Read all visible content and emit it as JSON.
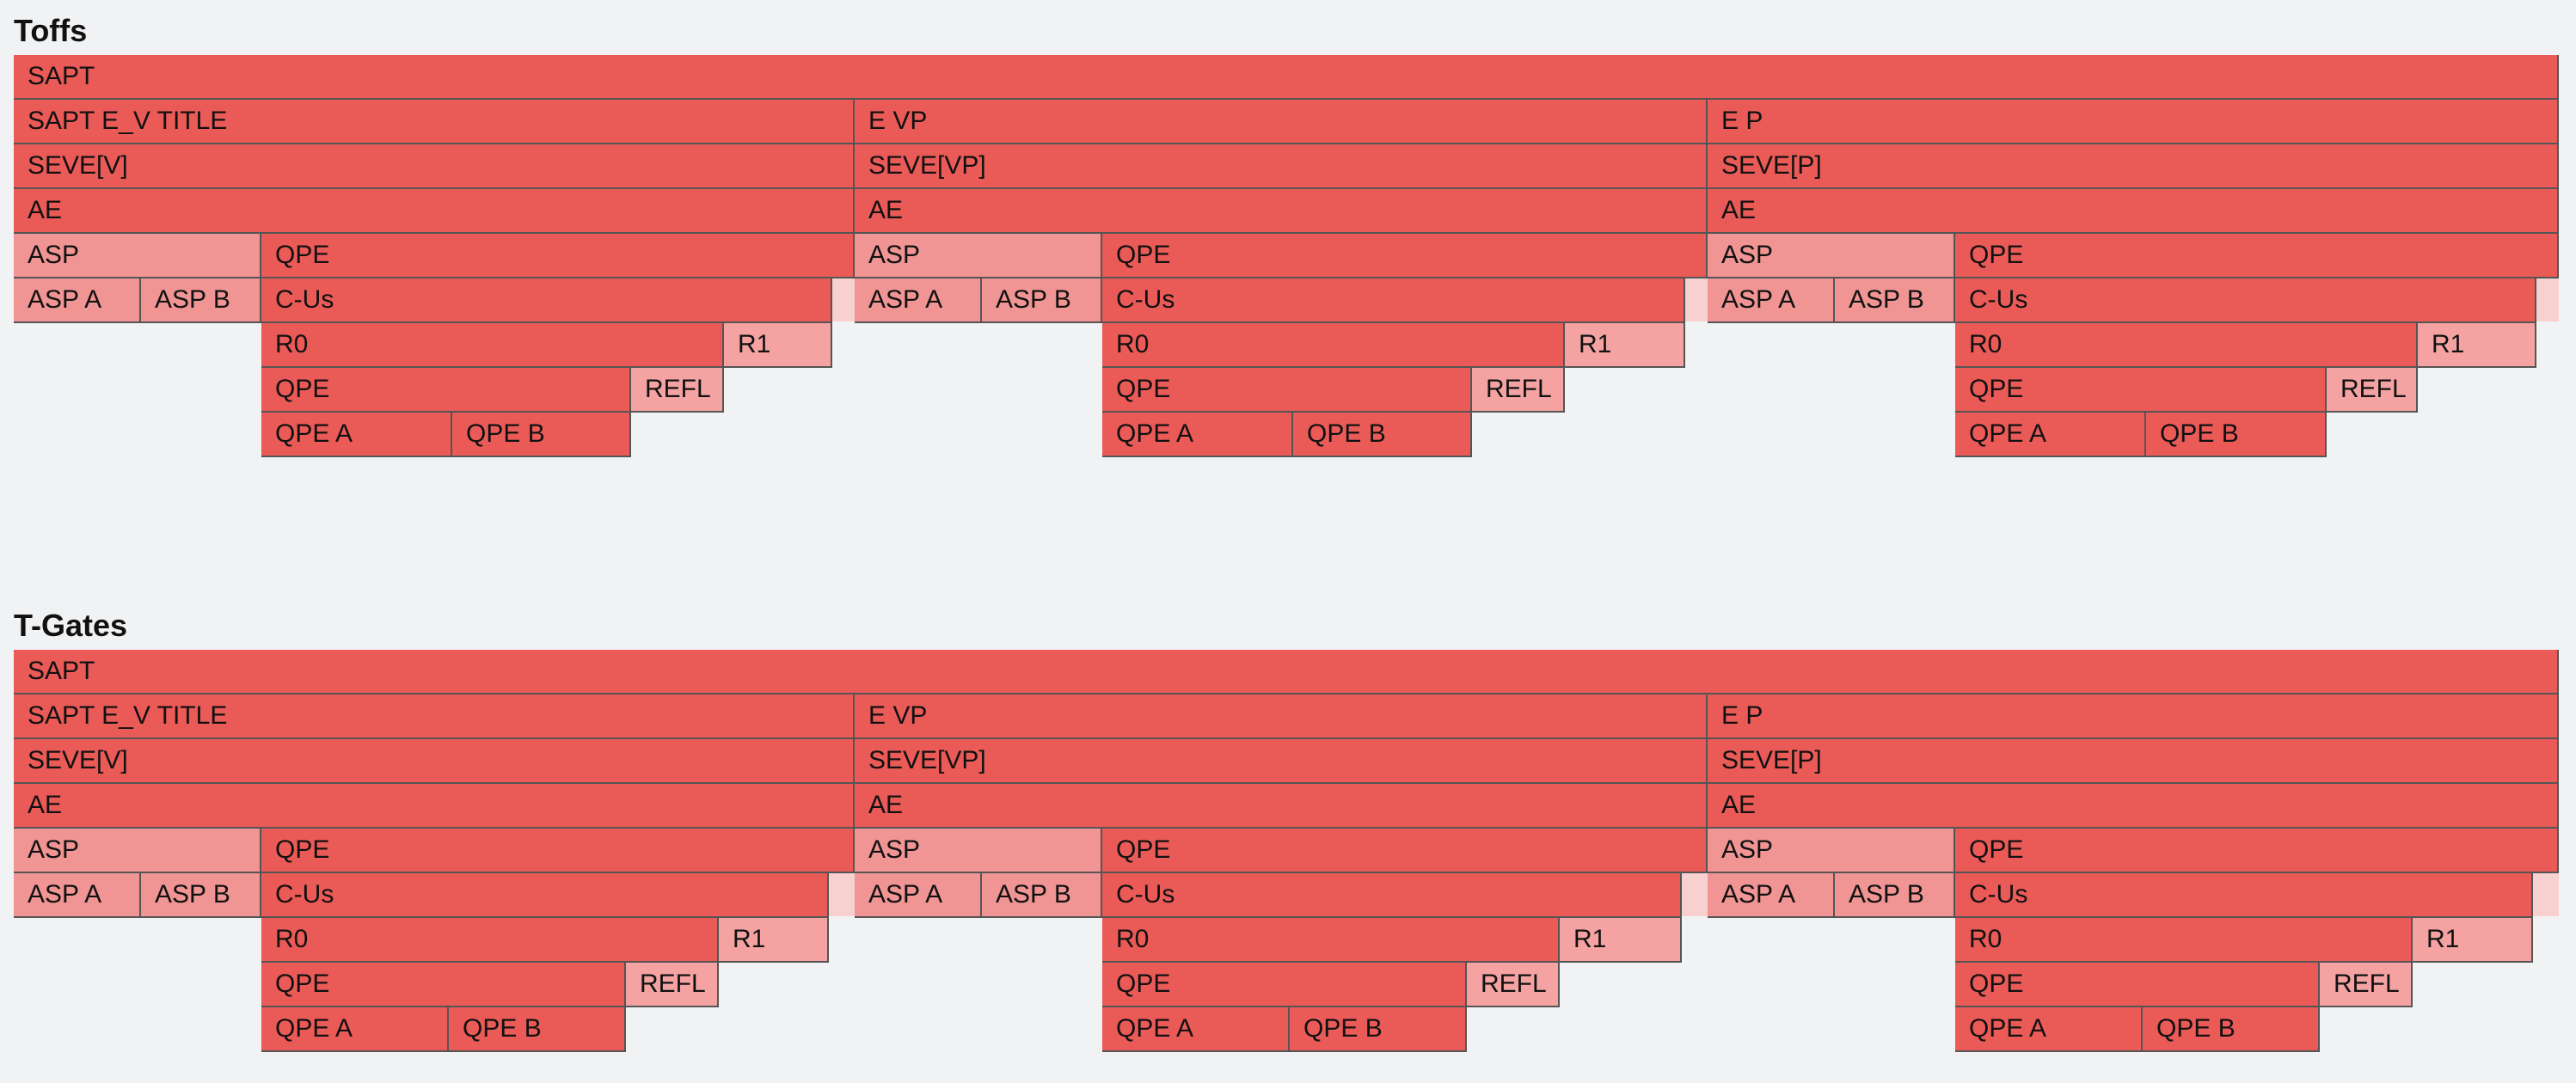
{
  "colors": {
    "background": "#f1f2f4",
    "main": "#ea5a57",
    "light": "#f09594",
    "lighter": "#f4a3a2",
    "stub": "#f9d0d0",
    "border": "#555555"
  },
  "sections": [
    {
      "title": "Toffs",
      "root": {
        "label": "SAPT"
      },
      "branches": [
        {
          "header": "SAPT E_V TITLE",
          "seve": "SEVE[V]",
          "ae": "AE",
          "asp": "ASP",
          "asp_a": "ASP A",
          "asp_b": "ASP B",
          "qpe": "QPE",
          "cus": "C-Us",
          "r0": "R0",
          "r1": "R1",
          "qpe_inner": "QPE",
          "refl": "REFL",
          "qpe_a": "QPE A",
          "qpe_b": "QPE B"
        },
        {
          "header": "E VP",
          "seve": "SEVE[VP]",
          "ae": "AE",
          "asp": "ASP",
          "asp_a": "ASP A",
          "asp_b": "ASP B",
          "qpe": "QPE",
          "cus": "C-Us",
          "r0": "R0",
          "r1": "R1",
          "qpe_inner": "QPE",
          "refl": "REFL",
          "qpe_a": "QPE A",
          "qpe_b": "QPE B"
        },
        {
          "header": "E P",
          "seve": "SEVE[P]",
          "ae": "AE",
          "asp": "ASP",
          "asp_a": "ASP A",
          "asp_b": "ASP B",
          "qpe": "QPE",
          "cus": "C-Us",
          "r0": "R0",
          "r1": "R1",
          "qpe_inner": "QPE",
          "refl": "REFL",
          "qpe_a": "QPE A",
          "qpe_b": "QPE B"
        }
      ]
    },
    {
      "title": "T-Gates",
      "root": {
        "label": "SAPT"
      },
      "branches": [
        {
          "header": "SAPT E_V TITLE",
          "seve": "SEVE[V]",
          "ae": "AE",
          "asp": "ASP",
          "asp_a": "ASP A",
          "asp_b": "ASP B",
          "qpe": "QPE",
          "cus": "C-Us",
          "r0": "R0",
          "r1": "R1",
          "qpe_inner": "QPE",
          "refl": "REFL",
          "qpe_a": "QPE A",
          "qpe_b": "QPE B"
        },
        {
          "header": "E VP",
          "seve": "SEVE[VP]",
          "ae": "AE",
          "asp": "ASP",
          "asp_a": "ASP A",
          "asp_b": "ASP B",
          "qpe": "QPE",
          "cus": "C-Us",
          "r0": "R0",
          "r1": "R1",
          "qpe_inner": "QPE",
          "refl": "REFL",
          "qpe_a": "QPE A",
          "qpe_b": "QPE B"
        },
        {
          "header": "E P",
          "seve": "SEVE[P]",
          "ae": "AE",
          "asp": "ASP",
          "asp_a": "ASP A",
          "asp_b": "ASP B",
          "qpe": "QPE",
          "cus": "C-Us",
          "r0": "R0",
          "r1": "R1",
          "qpe_inner": "QPE",
          "refl": "REFL",
          "qpe_a": "QPE A",
          "qpe_b": "QPE B"
        }
      ]
    }
  ]
}
